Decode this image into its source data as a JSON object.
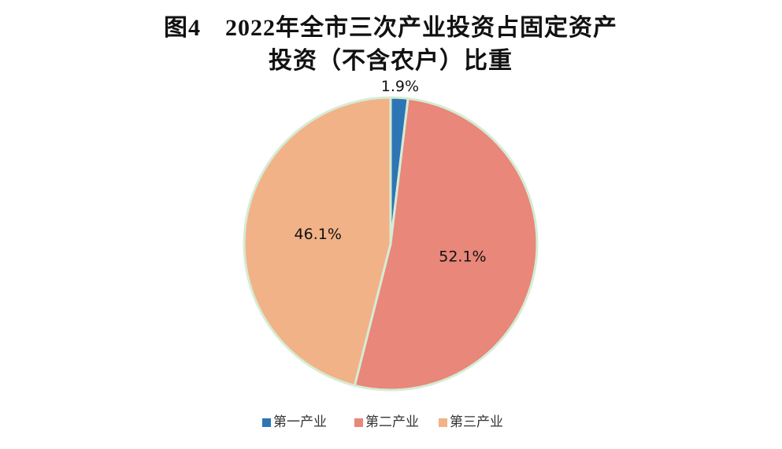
{
  "chart_data": {
    "type": "pie",
    "title": [
      "图4　2022年全市三次产业投资占固定资产",
      "投资（不含农户）比重"
    ],
    "categories": [
      "第一产业",
      "第二产业",
      "第三产业"
    ],
    "values": [
      1.9,
      52.1,
      46.1
    ],
    "value_labels": [
      "1.9%",
      "52.1%",
      "46.1%"
    ],
    "colors": [
      "#2e75b6",
      "#e8877a",
      "#f2b287"
    ],
    "legend": "bottom"
  }
}
